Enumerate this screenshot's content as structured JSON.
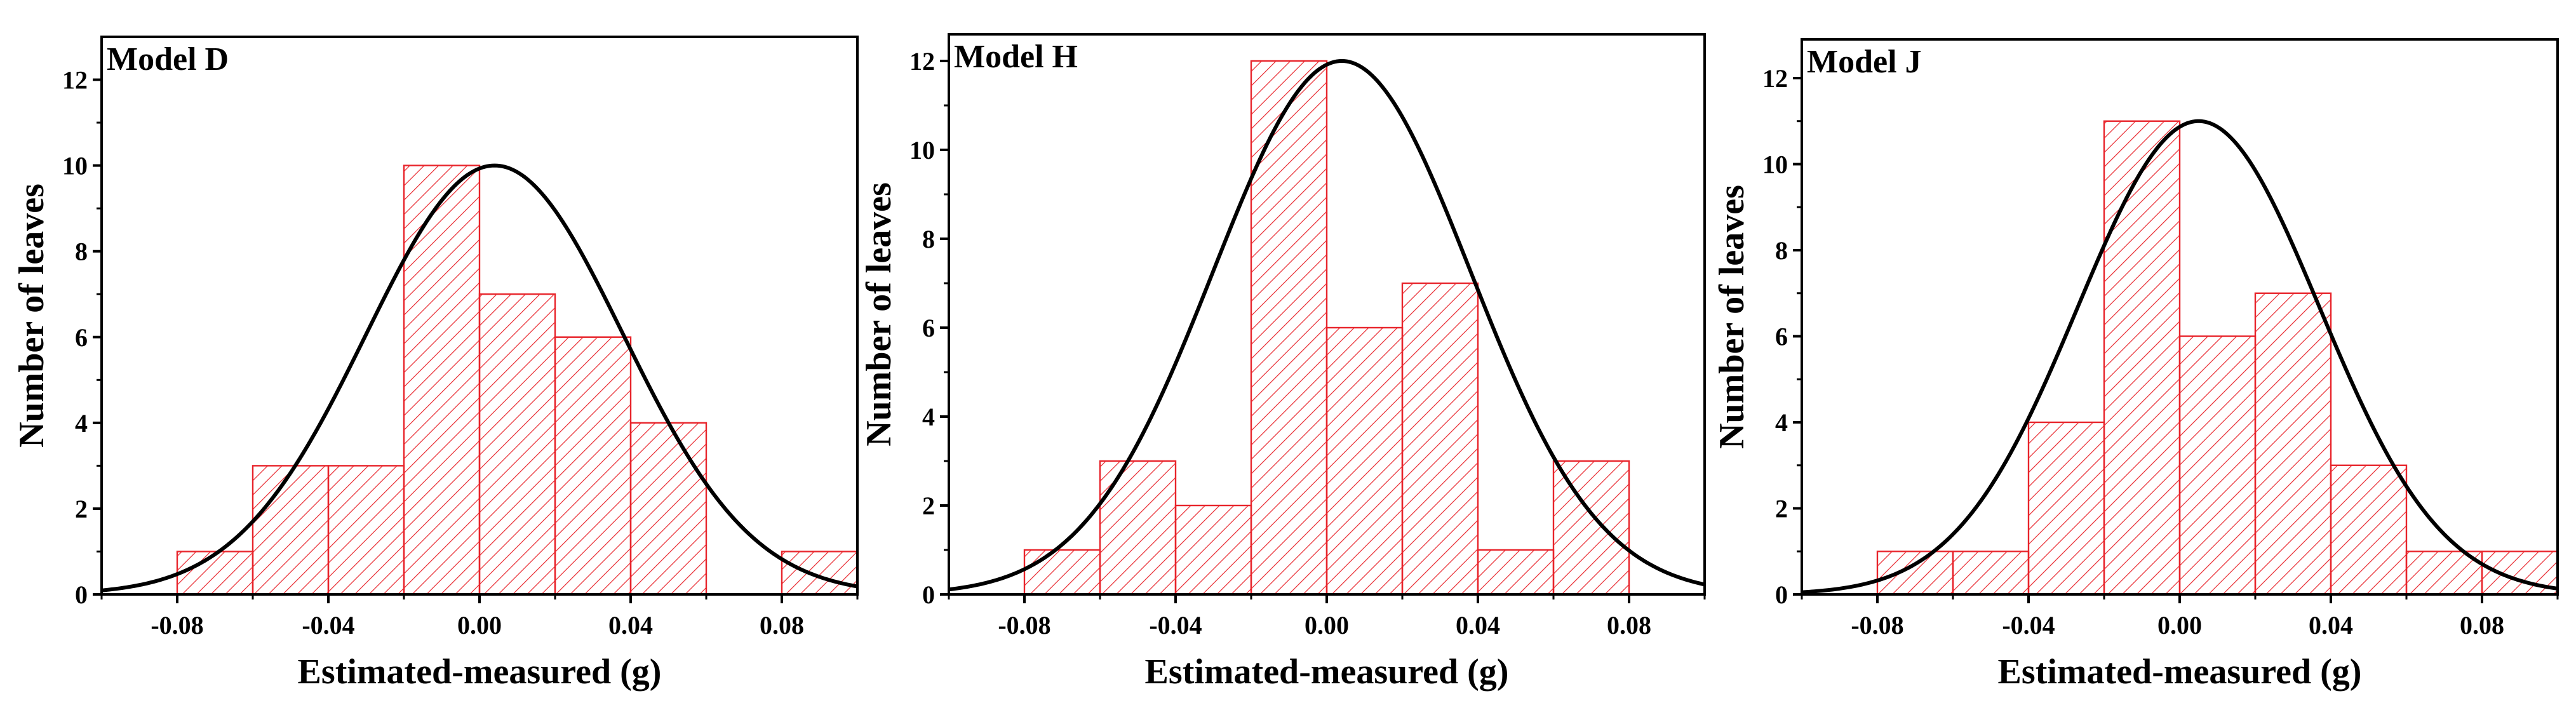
{
  "chart_data": [
    {
      "type": "bar",
      "title": "Model D",
      "xlabel": "Estimated-measured (g)",
      "ylabel": "Number of leaves",
      "xlim": [
        -0.1,
        0.1
      ],
      "ylim": [
        0,
        13
      ],
      "xticks": [
        -0.08,
        -0.04,
        0.0,
        0.04,
        0.08
      ],
      "xtick_labels": [
        "-0.08",
        "-0.04",
        "0.00",
        "0.04",
        "0.08"
      ],
      "yticks": [
        0,
        2,
        4,
        6,
        8,
        10,
        12
      ],
      "ytick_labels": [
        "0",
        "2",
        "4",
        "6",
        "8",
        "10",
        "12"
      ],
      "bin_width": 0.02,
      "bins": [
        {
          "start": -0.08,
          "count": 1
        },
        {
          "start": -0.06,
          "count": 3
        },
        {
          "start": -0.04,
          "count": 3
        },
        {
          "start": -0.02,
          "count": 10
        },
        {
          "start": 0.0,
          "count": 7
        },
        {
          "start": 0.02,
          "count": 6
        },
        {
          "start": 0.04,
          "count": 4
        },
        {
          "start": 0.08,
          "count": 1
        }
      ],
      "normal_curve": {
        "mean": 0.004,
        "sd": 0.034,
        "peak": 10
      }
    },
    {
      "type": "bar",
      "title": "Model H",
      "xlabel": "Estimated-measured (g)",
      "ylabel": "Number of leaves",
      "xlim": [
        -0.1,
        0.1
      ],
      "ylim": [
        0,
        12.6
      ],
      "xticks": [
        -0.08,
        -0.04,
        0.0,
        0.04,
        0.08
      ],
      "xtick_labels": [
        "-0.08",
        "-0.04",
        "0.00",
        "0.04",
        "0.08"
      ],
      "yticks": [
        0,
        2,
        4,
        6,
        8,
        10,
        12
      ],
      "ytick_labels": [
        "0",
        "2",
        "4",
        "6",
        "8",
        "10",
        "12"
      ],
      "bin_width": 0.02,
      "bins": [
        {
          "start": -0.08,
          "count": 1
        },
        {
          "start": -0.06,
          "count": 3
        },
        {
          "start": -0.04,
          "count": 2
        },
        {
          "start": -0.02,
          "count": 12
        },
        {
          "start": 0.0,
          "count": 6
        },
        {
          "start": 0.02,
          "count": 7
        },
        {
          "start": 0.04,
          "count": 1
        },
        {
          "start": 0.06,
          "count": 3
        }
      ],
      "normal_curve": {
        "mean": 0.004,
        "sd": 0.034,
        "peak": 12
      }
    },
    {
      "type": "bar",
      "title": "Model J",
      "xlabel": "Estimated-measured (g)",
      "ylabel": "Number of leaves",
      "xlim": [
        -0.1,
        0.1
      ],
      "ylim": [
        0,
        12.9
      ],
      "xticks": [
        -0.08,
        -0.04,
        0.0,
        0.04,
        0.08
      ],
      "xtick_labels": [
        "-0.08",
        "-0.04",
        "0.00",
        "0.04",
        "0.08"
      ],
      "yticks": [
        0,
        2,
        4,
        6,
        8,
        10,
        12
      ],
      "ytick_labels": [
        "0",
        "2",
        "4",
        "6",
        "8",
        "10",
        "12"
      ],
      "bin_width": 0.02,
      "bins": [
        {
          "start": -0.08,
          "count": 1
        },
        {
          "start": -0.06,
          "count": 1
        },
        {
          "start": -0.04,
          "count": 4
        },
        {
          "start": -0.02,
          "count": 11
        },
        {
          "start": 0.0,
          "count": 6
        },
        {
          "start": 0.02,
          "count": 7
        },
        {
          "start": 0.04,
          "count": 3
        },
        {
          "start": 0.06,
          "count": 1
        },
        {
          "start": 0.08,
          "count": 1
        }
      ],
      "normal_curve": {
        "mean": 0.005,
        "sd": 0.032,
        "peak": 11
      }
    }
  ],
  "colors": {
    "bar_stroke": "#e8242b",
    "hatch": "#e8242b",
    "curve": "#000000",
    "axis": "#000000"
  }
}
